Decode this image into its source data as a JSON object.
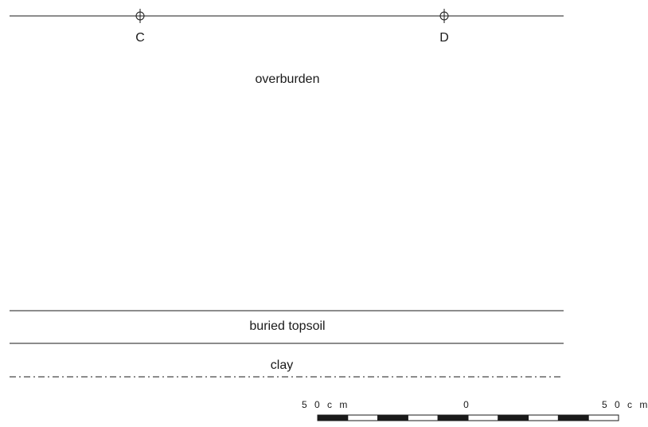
{
  "markers": [
    {
      "label": "C"
    },
    {
      "label": "D"
    }
  ],
  "layers": {
    "overburden": "overburden",
    "buried_topsoil": "buried topsoil",
    "clay": "clay"
  },
  "scale": {
    "left_label": "5 0 c m",
    "center_label": "0",
    "right_label": "5 0 c m",
    "segments": 10
  }
}
